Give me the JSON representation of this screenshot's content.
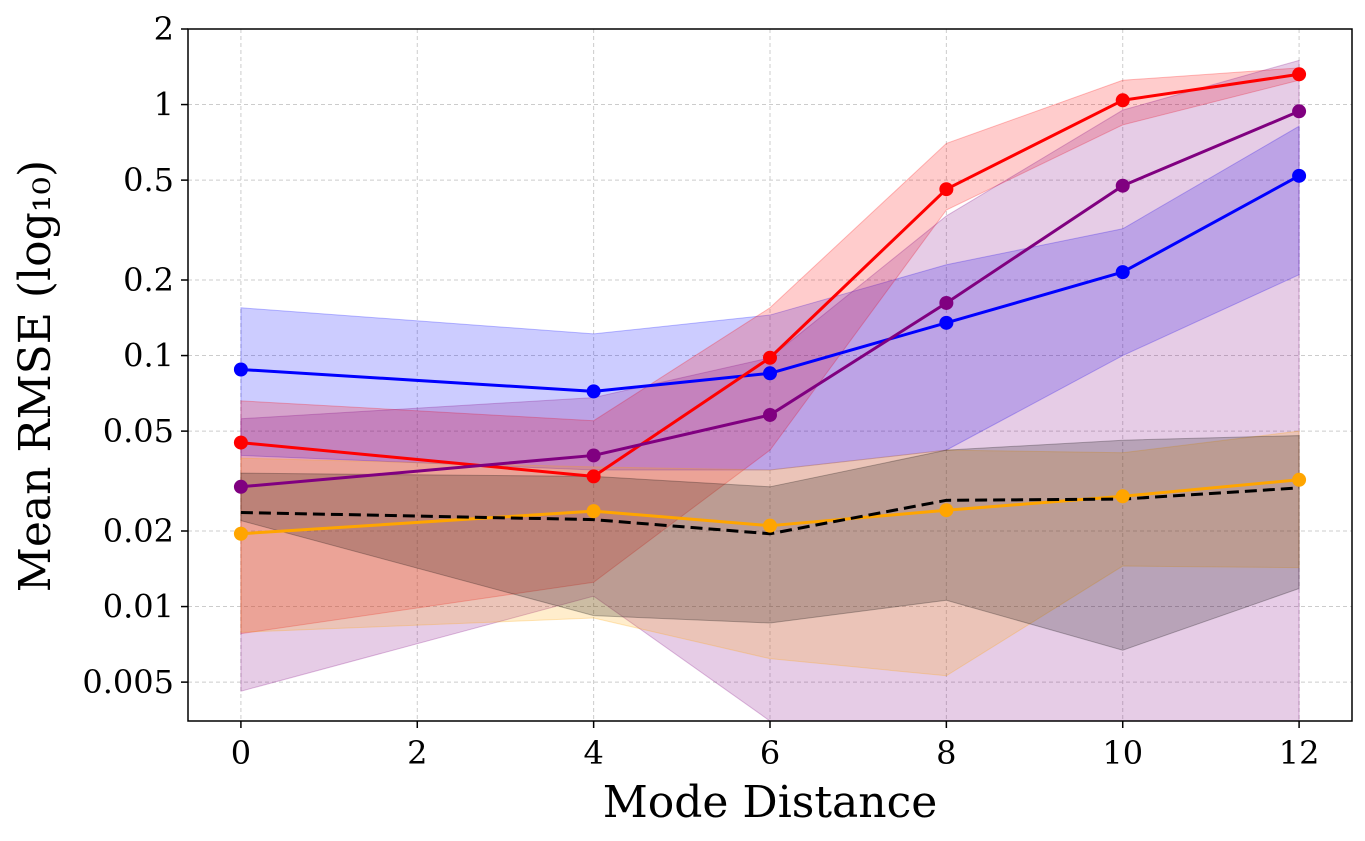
{
  "chart_data": {
    "type": "line",
    "title": "",
    "xlabel": "Mode Distance",
    "ylabel": "Mean RMSE (log₁₀)",
    "yscale": "log",
    "xlim": [
      -0.6,
      12.6
    ],
    "ylim": [
      0.0035,
      2
    ],
    "x_ticks": [
      0,
      2,
      4,
      6,
      8,
      10,
      12
    ],
    "y_ticks": [
      0.005,
      0.01,
      0.02,
      0.05,
      0.1,
      0.2,
      0.5,
      1,
      2
    ],
    "grid": true,
    "legend": "none",
    "x": [
      0,
      4,
      6,
      8,
      10,
      12
    ],
    "series": [
      {
        "color": "#0000ff",
        "line_style": "solid",
        "markers": true,
        "values": [
          0.088,
          0.072,
          0.085,
          0.135,
          0.215,
          0.52
        ],
        "band_upper": [
          0.155,
          0.122,
          0.145,
          0.23,
          0.32,
          0.82
        ],
        "band_lower": [
          0.04,
          0.035,
          0.035,
          0.042,
          0.1,
          0.21
        ]
      },
      {
        "color": "#ff0000",
        "line_style": "solid",
        "markers": true,
        "values": [
          0.045,
          0.033,
          0.098,
          0.46,
          1.04,
          1.32
        ],
        "band_upper": [
          0.066,
          0.055,
          0.155,
          0.7,
          1.25,
          1.4
        ],
        "band_lower": [
          0.0078,
          0.0125,
          0.042,
          0.38,
          0.83,
          1.25
        ]
      },
      {
        "color": "#800080",
        "line_style": "solid",
        "markers": true,
        "values": [
          0.03,
          0.04,
          0.058,
          0.162,
          0.475,
          0.94
        ],
        "band_upper": [
          0.056,
          0.068,
          0.098,
          0.36,
          0.95,
          1.5
        ],
        "band_lower": [
          0.0046,
          0.011,
          0.0035,
          0.0035,
          0.0035,
          0.0035
        ]
      },
      {
        "color": "#ffa500",
        "line_style": "solid",
        "markers": true,
        "values": [
          0.0195,
          0.024,
          0.021,
          0.0242,
          0.0275,
          0.032
        ],
        "band_upper": [
          0.039,
          0.036,
          0.035,
          0.042,
          0.041,
          0.05
        ],
        "band_lower": [
          0.0079,
          0.009,
          0.0062,
          0.0053,
          0.0145,
          0.0143
        ]
      },
      {
        "color": "#000000",
        "line_style": "dashed",
        "markers": false,
        "values": [
          0.0237,
          0.0222,
          0.0195,
          0.0265,
          0.0268,
          0.0297
        ],
        "band_upper": [
          0.034,
          0.033,
          0.03,
          0.042,
          0.046,
          0.048
        ],
        "band_lower": [
          0.022,
          0.0092,
          0.0086,
          0.0106,
          0.0067,
          0.0118
        ]
      }
    ]
  }
}
